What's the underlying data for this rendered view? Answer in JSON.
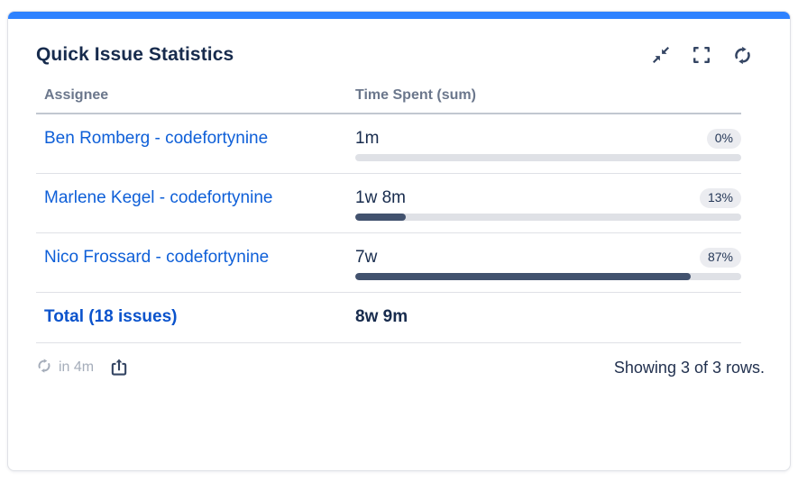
{
  "accent_color": "#2e82ff",
  "header": {
    "title": "Quick Issue Statistics",
    "icons": [
      {
        "name": "collapse-icon"
      },
      {
        "name": "fullscreen-icon"
      },
      {
        "name": "refresh-icon"
      }
    ]
  },
  "table": {
    "columns": {
      "assignee": "Assignee",
      "time_spent": "Time Spent (sum)"
    },
    "rows": [
      {
        "assignee": "Ben Romberg - codefortynine",
        "time_spent": "1m",
        "percent_label": "0%",
        "percent_value": 0
      },
      {
        "assignee": "Marlene Kegel - codefortynine",
        "time_spent": "1w 8m",
        "percent_label": "13%",
        "percent_value": 13
      },
      {
        "assignee": "Nico Frossard - codefortynine",
        "time_spent": "7w",
        "percent_label": "87%",
        "percent_value": 87
      }
    ],
    "total": {
      "label": "Total (18 issues)",
      "time_spent": "8w 9m"
    }
  },
  "footer": {
    "refresh_countdown": "in 4m",
    "showing_text": "Showing 3 of 3 rows."
  },
  "colors": {
    "title_text": "#172b4d",
    "link_blue": "#0e5fd8",
    "total_blue": "#0b53cc",
    "icon_navy": "#344563",
    "muted_gray": "#a5adba",
    "progress_track": "#dfe1e6",
    "progress_fill": "#42526e",
    "badge_bg": "#ebecf0"
  },
  "chart_data": {
    "type": "bar",
    "categories": [
      "Ben Romberg - codefortynine",
      "Marlene Kegel - codefortynine",
      "Nico Frossard - codefortynine"
    ],
    "values": [
      0,
      13,
      87
    ],
    "value_labels": [
      "1m",
      "1w 8m",
      "7w"
    ],
    "title": "Quick Issue Statistics",
    "xlabel": "Assignee",
    "ylabel": "Time Spent (sum) %",
    "ylim": [
      0,
      100
    ],
    "total": {
      "issues": 18,
      "time_spent": "8w 9m"
    }
  }
}
